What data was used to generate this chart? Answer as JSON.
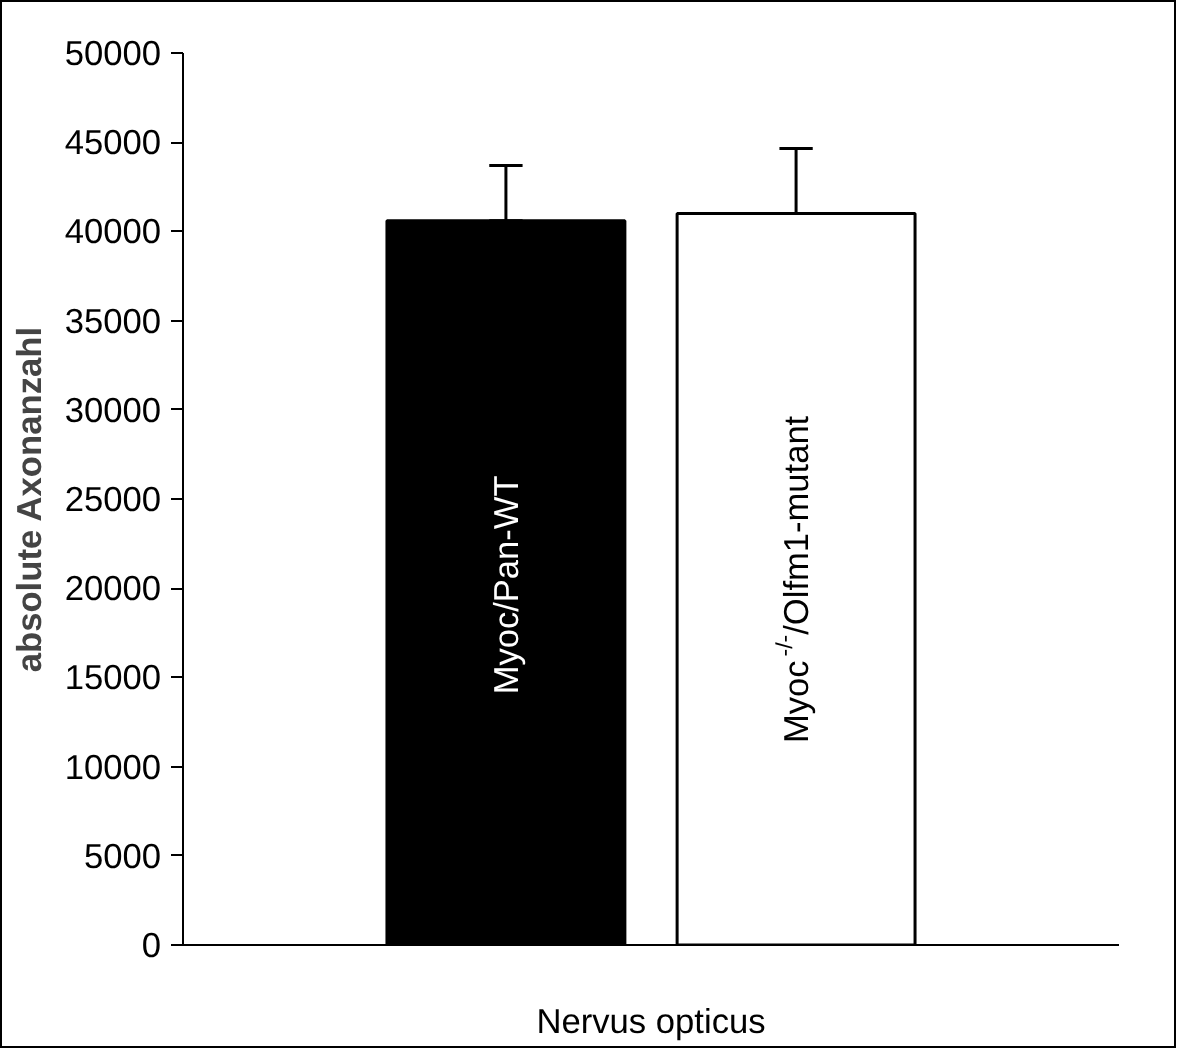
{
  "chart_data": {
    "type": "bar",
    "categories": [
      "Nervus opticus"
    ],
    "ylabel": "absolute Axonanzahl",
    "ylim": [
      0,
      50000
    ],
    "yticks": [
      0,
      5000,
      10000,
      15000,
      20000,
      25000,
      30000,
      35000,
      40000,
      45000,
      50000
    ],
    "grid": false,
    "legend": false,
    "series": [
      {
        "name": "Myoc/Pan-WT",
        "color": "#000000",
        "values": [
          40600
        ],
        "errors": [
          [
            40600,
            43700
          ]
        ]
      },
      {
        "name": "Myoc$^{-/-}$/Olfm1-mutant",
        "color": "#ffffff",
        "values": [
          41000
        ],
        "errors": [
          [
            41000,
            44650
          ]
        ]
      }
    ]
  }
}
